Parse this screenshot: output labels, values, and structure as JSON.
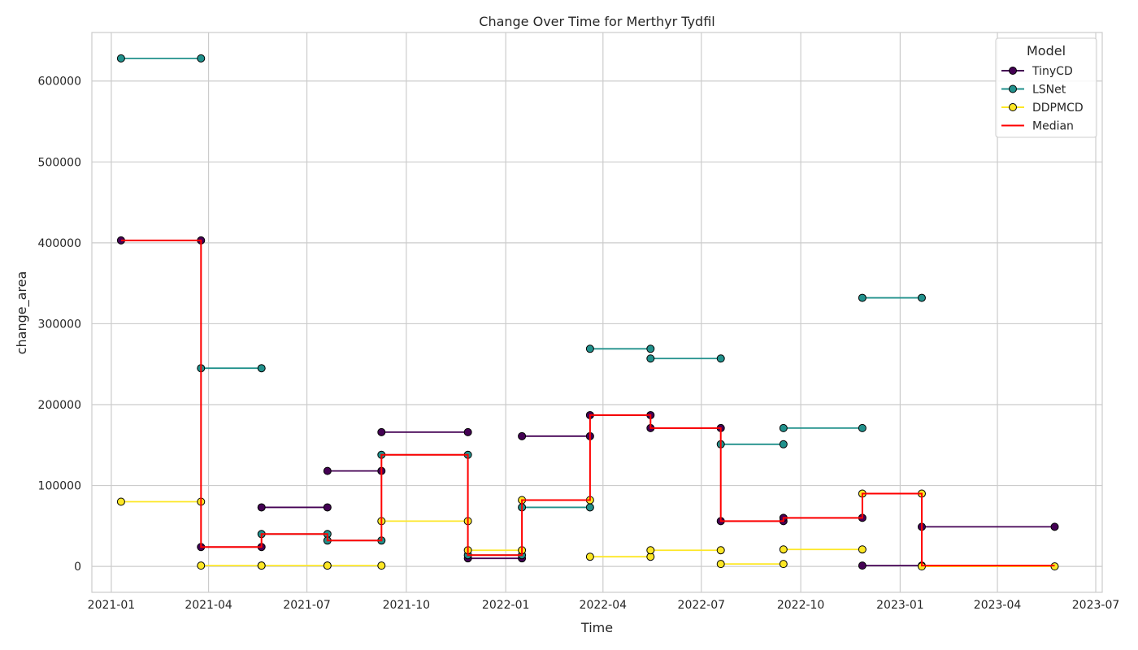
{
  "chart_data": {
    "type": "line",
    "title": "Change Over Time for Merthyr Tydfil",
    "xlabel": "Time",
    "ylabel": "change_area",
    "x_type": "date",
    "xlim": [
      "2020-12-14",
      "2023-07-07"
    ],
    "ylim": [
      -32000,
      660000
    ],
    "x_ticks": [
      {
        "value": "2021-01-01",
        "label": "2021-01"
      },
      {
        "value": "2021-04-01",
        "label": "2021-04"
      },
      {
        "value": "2021-07-01",
        "label": "2021-07"
      },
      {
        "value": "2021-10-01",
        "label": "2021-10"
      },
      {
        "value": "2022-01-01",
        "label": "2022-01"
      },
      {
        "value": "2022-04-01",
        "label": "2022-04"
      },
      {
        "value": "2022-07-01",
        "label": "2022-07"
      },
      {
        "value": "2022-10-01",
        "label": "2022-10"
      },
      {
        "value": "2023-01-01",
        "label": "2023-01"
      },
      {
        "value": "2023-04-01",
        "label": "2023-04"
      },
      {
        "value": "2023-07-01",
        "label": "2023-07"
      }
    ],
    "y_ticks": [
      {
        "value": 0,
        "label": "0"
      },
      {
        "value": 100000,
        "label": "100000"
      },
      {
        "value": 200000,
        "label": "200000"
      },
      {
        "value": 300000,
        "label": "300000"
      },
      {
        "value": 400000,
        "label": "400000"
      },
      {
        "value": 500000,
        "label": "500000"
      },
      {
        "value": 600000,
        "label": "600000"
      }
    ],
    "grid": true,
    "legend": {
      "title": "Model",
      "position": "top-right"
    },
    "series": [
      {
        "name": "TinyCD",
        "color": "#440154",
        "style": "step-segments-with-markers",
        "segments": [
          [
            [
              "2021-01-10",
              403000
            ],
            [
              "2021-03-25",
              403000
            ]
          ],
          [
            [
              "2021-03-25",
              24000
            ],
            [
              "2021-05-20",
              24000
            ]
          ],
          [
            [
              "2021-05-20",
              73000
            ],
            [
              "2021-07-20",
              73000
            ]
          ],
          [
            [
              "2021-07-20",
              118000
            ],
            [
              "2021-09-08",
              118000
            ]
          ],
          [
            [
              "2021-09-08",
              166000
            ],
            [
              "2021-11-27",
              166000
            ]
          ],
          [
            [
              "2021-11-27",
              10000
            ],
            [
              "2022-01-16",
              10000
            ]
          ],
          [
            [
              "2022-01-16",
              161000
            ],
            [
              "2022-03-20",
              161000
            ]
          ],
          [
            [
              "2022-03-20",
              187000
            ],
            [
              "2022-05-15",
              187000
            ]
          ],
          [
            [
              "2022-05-15",
              171000
            ],
            [
              "2022-07-19",
              171000
            ]
          ],
          [
            [
              "2022-07-19",
              56000
            ],
            [
              "2022-09-15",
              56000
            ]
          ],
          [
            [
              "2022-09-15",
              60000
            ],
            [
              "2022-11-27",
              60000
            ]
          ],
          [
            [
              "2022-11-27",
              1000
            ],
            [
              "2023-01-21",
              1000
            ]
          ],
          [
            [
              "2023-01-21",
              49000
            ],
            [
              "2023-05-24",
              49000
            ]
          ]
        ]
      },
      {
        "name": "LSNet",
        "color": "#21918c",
        "style": "step-segments-with-markers",
        "segments": [
          [
            [
              "2021-01-10",
              628000
            ],
            [
              "2021-03-25",
              628000
            ]
          ],
          [
            [
              "2021-03-25",
              245000
            ],
            [
              "2021-05-20",
              245000
            ]
          ],
          [
            [
              "2021-05-20",
              40000
            ],
            [
              "2021-07-20",
              40000
            ]
          ],
          [
            [
              "2021-07-20",
              32000
            ],
            [
              "2021-09-08",
              32000
            ]
          ],
          [
            [
              "2021-09-08",
              138000
            ],
            [
              "2021-11-27",
              138000
            ]
          ],
          [
            [
              "2021-11-27",
              14000
            ],
            [
              "2022-01-16",
              14000
            ]
          ],
          [
            [
              "2022-01-16",
              73000
            ],
            [
              "2022-03-20",
              73000
            ]
          ],
          [
            [
              "2022-03-20",
              269000
            ],
            [
              "2022-05-15",
              269000
            ]
          ],
          [
            [
              "2022-05-15",
              257000
            ],
            [
              "2022-07-19",
              257000
            ]
          ],
          [
            [
              "2022-07-19",
              151000
            ],
            [
              "2022-09-15",
              151000
            ]
          ],
          [
            [
              "2022-09-15",
              171000
            ],
            [
              "2022-11-27",
              171000
            ]
          ],
          [
            [
              "2022-11-27",
              332000
            ],
            [
              "2023-01-21",
              332000
            ]
          ]
        ]
      },
      {
        "name": "DDPMCD",
        "color": "#fde725",
        "style": "step-segments-with-markers",
        "segments": [
          [
            [
              "2021-01-10",
              80000
            ],
            [
              "2021-03-25",
              80000
            ]
          ],
          [
            [
              "2021-03-25",
              1000
            ],
            [
              "2021-05-20",
              1000
            ]
          ],
          [
            [
              "2021-05-20",
              1000
            ],
            [
              "2021-07-20",
              1000
            ]
          ],
          [
            [
              "2021-07-20",
              1000
            ],
            [
              "2021-09-08",
              1000
            ]
          ],
          [
            [
              "2021-09-08",
              56000
            ],
            [
              "2021-11-27",
              56000
            ]
          ],
          [
            [
              "2021-11-27",
              20000
            ],
            [
              "2022-01-16",
              20000
            ]
          ],
          [
            [
              "2022-01-16",
              82000
            ],
            [
              "2022-03-20",
              82000
            ]
          ],
          [
            [
              "2022-03-20",
              12000
            ],
            [
              "2022-05-15",
              12000
            ]
          ],
          [
            [
              "2022-05-15",
              20000
            ],
            [
              "2022-07-19",
              20000
            ]
          ],
          [
            [
              "2022-07-19",
              3000
            ],
            [
              "2022-09-15",
              3000
            ]
          ],
          [
            [
              "2022-09-15",
              21000
            ],
            [
              "2022-11-27",
              21000
            ]
          ],
          [
            [
              "2022-11-27",
              90000
            ],
            [
              "2023-01-21",
              90000
            ]
          ],
          [
            [
              "2023-01-21",
              0
            ],
            [
              "2023-05-24",
              0
            ]
          ]
        ]
      },
      {
        "name": "Median",
        "color": "#ff0000",
        "style": "step-line",
        "points": [
          [
            "2021-01-10",
            403000
          ],
          [
            "2021-03-25",
            403000
          ],
          [
            "2021-03-25",
            24000
          ],
          [
            "2021-05-20",
            24000
          ],
          [
            "2021-05-20",
            40000
          ],
          [
            "2021-07-20",
            40000
          ],
          [
            "2021-07-20",
            32000
          ],
          [
            "2021-09-08",
            32000
          ],
          [
            "2021-09-08",
            138000
          ],
          [
            "2021-11-27",
            138000
          ],
          [
            "2021-11-27",
            14000
          ],
          [
            "2022-01-16",
            14000
          ],
          [
            "2022-01-16",
            82000
          ],
          [
            "2022-03-20",
            82000
          ],
          [
            "2022-03-20",
            187000
          ],
          [
            "2022-05-15",
            187000
          ],
          [
            "2022-05-15",
            171000
          ],
          [
            "2022-07-19",
            171000
          ],
          [
            "2022-07-19",
            56000
          ],
          [
            "2022-09-15",
            56000
          ],
          [
            "2022-09-15",
            60000
          ],
          [
            "2022-11-27",
            60000
          ],
          [
            "2022-11-27",
            90000
          ],
          [
            "2023-01-21",
            90000
          ],
          [
            "2023-01-21",
            1000
          ],
          [
            "2023-05-24",
            1000
          ]
        ]
      }
    ]
  }
}
